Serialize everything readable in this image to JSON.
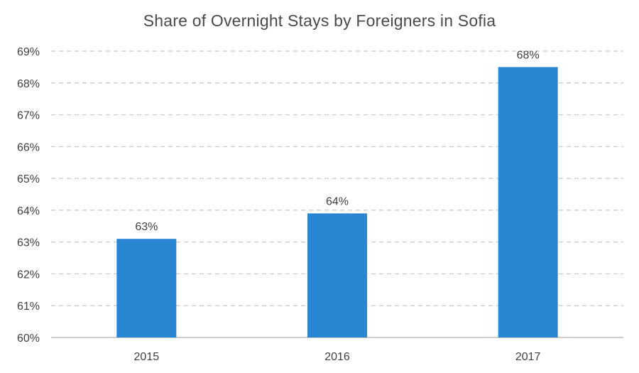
{
  "chart_data": {
    "type": "bar",
    "title": "Share of Overnight Stays by Foreigners in Sofia",
    "categories": [
      "2015",
      "2016",
      "2017"
    ],
    "values": [
      63.1,
      63.9,
      68.5
    ],
    "data_labels": [
      "63%",
      "64%",
      "68%"
    ],
    "ylim": [
      60,
      69
    ],
    "yticks": [
      60,
      61,
      62,
      63,
      64,
      65,
      66,
      67,
      68,
      69
    ],
    "ytick_labels": [
      "60%",
      "61%",
      "62%",
      "63%",
      "64%",
      "65%",
      "66%",
      "67%",
      "68%",
      "69%"
    ],
    "xlabel": "",
    "ylabel": "",
    "grid": true,
    "grid_style": "dashed",
    "legend": false,
    "bar_color": "#2986d2",
    "grid_color": "#c8c8c8",
    "axis_color": "#bfbfbf"
  }
}
